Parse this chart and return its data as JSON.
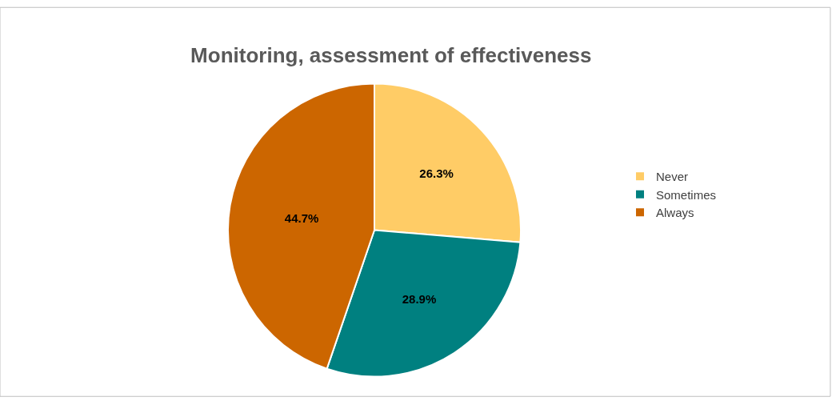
{
  "chart_data": {
    "type": "pie",
    "title": "Monitoring, assessment of effectiveness",
    "categories": [
      "Never",
      "Sometimes",
      "Always"
    ],
    "values": [
      26.3,
      28.9,
      44.7
    ],
    "colors": [
      "#ffcc66",
      "#008080",
      "#cc6600"
    ],
    "value_labels": [
      "26.3%",
      "28.9%",
      "44.7%"
    ],
    "legend": "right"
  }
}
